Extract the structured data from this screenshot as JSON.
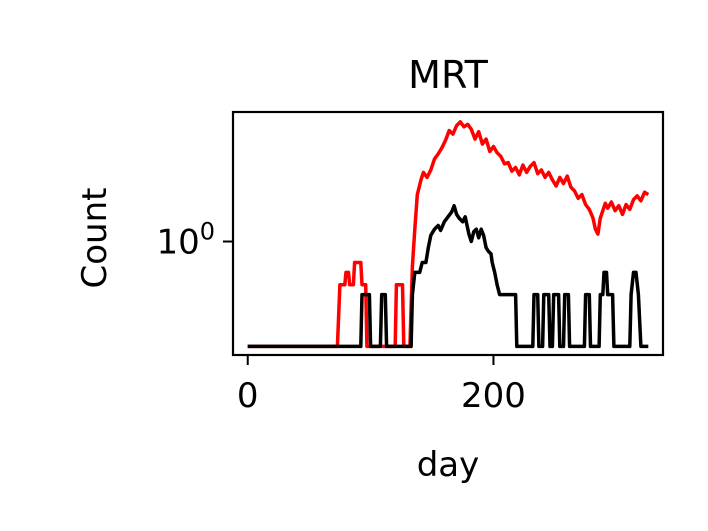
{
  "chart_data": {
    "type": "line",
    "title": "MRT",
    "xlabel": "day",
    "ylabel": "Count",
    "xlim": [
      -12,
      338
    ],
    "ylog": true,
    "ylim_log10": [
      -0.92,
      1.05
    ],
    "floor_log10": -0.85,
    "x_ticks": [
      {
        "value": 0,
        "label": "0"
      },
      {
        "value": 200,
        "label": "200"
      }
    ],
    "y_ticks": [
      {
        "log10": 0,
        "label": "10",
        "exp": "0"
      }
    ],
    "grid": false,
    "legend": "none",
    "series": [
      {
        "color": "#ff0000",
        "points": [
          [
            0,
            -0.85
          ],
          [
            73,
            -0.85
          ],
          [
            75,
            -0.35
          ],
          [
            79,
            -0.35
          ],
          [
            80,
            -0.25
          ],
          [
            82,
            -0.25
          ],
          [
            83,
            -0.35
          ],
          [
            86,
            -0.35
          ],
          [
            87,
            -0.17
          ],
          [
            92,
            -0.17
          ],
          [
            93,
            -0.35
          ],
          [
            96,
            -0.35
          ],
          [
            97,
            -0.85
          ],
          [
            120,
            -0.85
          ],
          [
            121,
            -0.35
          ],
          [
            126,
            -0.35
          ],
          [
            127,
            -0.85
          ],
          [
            132,
            -0.85
          ],
          [
            134,
            -0.2
          ],
          [
            136,
            0.1
          ],
          [
            138,
            0.38
          ],
          [
            141,
            0.5
          ],
          [
            143,
            0.56
          ],
          [
            146,
            0.52
          ],
          [
            149,
            0.58
          ],
          [
            152,
            0.67
          ],
          [
            155,
            0.71
          ],
          [
            158,
            0.76
          ],
          [
            161,
            0.82
          ],
          [
            164,
            0.9
          ],
          [
            167,
            0.87
          ],
          [
            170,
            0.94
          ],
          [
            173,
            0.97
          ],
          [
            176,
            0.93
          ],
          [
            179,
            0.95
          ],
          [
            182,
            0.91
          ],
          [
            185,
            0.83
          ],
          [
            188,
            0.89
          ],
          [
            191,
            0.79
          ],
          [
            194,
            0.83
          ],
          [
            197,
            0.73
          ],
          [
            200,
            0.77
          ],
          [
            203,
            0.72
          ],
          [
            206,
            0.69
          ],
          [
            209,
            0.63
          ],
          [
            212,
            0.64
          ],
          [
            215,
            0.57
          ],
          [
            218,
            0.6
          ],
          [
            221,
            0.54
          ],
          [
            224,
            0.62
          ],
          [
            227,
            0.56
          ],
          [
            230,
            0.61
          ],
          [
            233,
            0.64
          ],
          [
            236,
            0.55
          ],
          [
            239,
            0.58
          ],
          [
            242,
            0.52
          ],
          [
            245,
            0.56
          ],
          [
            248,
            0.5
          ],
          [
            251,
            0.45
          ],
          [
            254,
            0.52
          ],
          [
            257,
            0.47
          ],
          [
            260,
            0.53
          ],
          [
            263,
            0.44
          ],
          [
            266,
            0.41
          ],
          [
            269,
            0.35
          ],
          [
            272,
            0.38
          ],
          [
            275,
            0.3
          ],
          [
            278,
            0.26
          ],
          [
            281,
            0.19
          ],
          [
            283,
            0.1
          ],
          [
            285,
            0.06
          ],
          [
            287,
            0.19
          ],
          [
            289,
            0.25
          ],
          [
            291,
            0.31
          ],
          [
            293,
            0.27
          ],
          [
            296,
            0.32
          ],
          [
            299,
            0.25
          ],
          [
            302,
            0.29
          ],
          [
            305,
            0.22
          ],
          [
            308,
            0.3
          ],
          [
            311,
            0.26
          ],
          [
            314,
            0.34
          ],
          [
            317,
            0.37
          ],
          [
            320,
            0.33
          ],
          [
            323,
            0.4
          ],
          [
            326,
            0.38
          ]
        ]
      },
      {
        "color": "#000000",
        "points": [
          [
            0,
            -0.85
          ],
          [
            92,
            -0.85
          ],
          [
            93,
            -0.43
          ],
          [
            99,
            -0.43
          ],
          [
            100,
            -0.85
          ],
          [
            108,
            -0.85
          ],
          [
            109,
            -0.43
          ],
          [
            112,
            -0.43
          ],
          [
            113,
            -0.85
          ],
          [
            133,
            -0.85
          ],
          [
            134,
            -0.43
          ],
          [
            136,
            -0.25
          ],
          [
            140,
            -0.25
          ],
          [
            142,
            -0.17
          ],
          [
            145,
            -0.17
          ],
          [
            147,
            -0.05
          ],
          [
            149,
            0.05
          ],
          [
            152,
            0.1
          ],
          [
            155,
            0.13
          ],
          [
            157,
            0.09
          ],
          [
            160,
            0.16
          ],
          [
            163,
            0.2
          ],
          [
            166,
            0.24
          ],
          [
            168,
            0.29
          ],
          [
            170,
            0.22
          ],
          [
            172,
            0.19
          ],
          [
            175,
            0.16
          ],
          [
            177,
            0.2
          ],
          [
            180,
            0.06
          ],
          [
            182,
            0.0
          ],
          [
            184,
            0.08
          ],
          [
            186,
            0.1
          ],
          [
            188,
            0.03
          ],
          [
            190,
            0.1
          ],
          [
            192,
            0.05
          ],
          [
            194,
            -0.05
          ],
          [
            196,
            -0.08
          ],
          [
            198,
            -0.1
          ],
          [
            199,
            -0.17
          ],
          [
            201,
            -0.25
          ],
          [
            203,
            -0.35
          ],
          [
            205,
            -0.43
          ],
          [
            218,
            -0.43
          ],
          [
            219,
            -0.85
          ],
          [
            232,
            -0.85
          ],
          [
            233,
            -0.43
          ],
          [
            236,
            -0.43
          ],
          [
            237,
            -0.85
          ],
          [
            240,
            -0.85
          ],
          [
            241,
            -0.43
          ],
          [
            245,
            -0.43
          ],
          [
            246,
            -0.85
          ],
          [
            248,
            -0.85
          ],
          [
            249,
            -0.43
          ],
          [
            253,
            -0.43
          ],
          [
            254,
            -0.85
          ],
          [
            257,
            -0.85
          ],
          [
            258,
            -0.43
          ],
          [
            261,
            -0.43
          ],
          [
            262,
            -0.85
          ],
          [
            274,
            -0.85
          ],
          [
            275,
            -0.43
          ],
          [
            278,
            -0.43
          ],
          [
            279,
            -0.85
          ],
          [
            286,
            -0.85
          ],
          [
            287,
            -0.43
          ],
          [
            289,
            -0.43
          ],
          [
            290,
            -0.25
          ],
          [
            292,
            -0.25
          ],
          [
            293,
            -0.43
          ],
          [
            297,
            -0.43
          ],
          [
            298,
            -0.85
          ],
          [
            311,
            -0.85
          ],
          [
            312,
            -0.43
          ],
          [
            314,
            -0.25
          ],
          [
            316,
            -0.25
          ],
          [
            318,
            -0.43
          ],
          [
            320,
            -0.85
          ],
          [
            326,
            -0.85
          ]
        ]
      }
    ]
  }
}
